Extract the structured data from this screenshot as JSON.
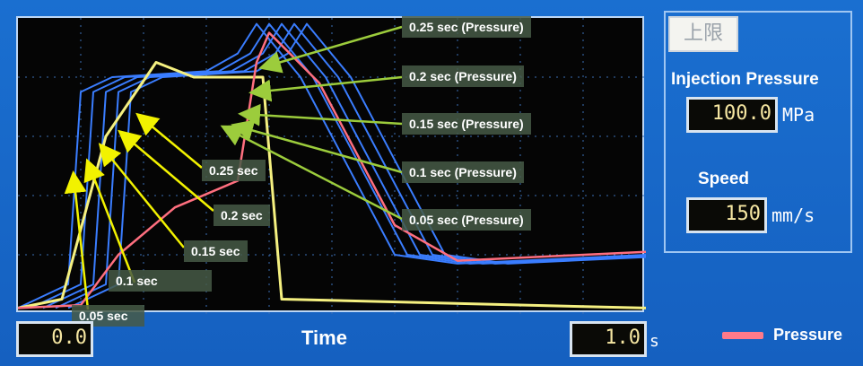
{
  "chart_data": {
    "type": "line",
    "xlabel": "Time",
    "xlim": [
      0.0,
      1.0
    ],
    "x_unit": "s",
    "grid": true,
    "series": [
      {
        "name": "Pressure",
        "color": "#ff6f7f"
      },
      {
        "color": "#3a7dff"
      },
      {
        "color": "#f5f080"
      }
    ],
    "series_pressure_points": [
      [
        0.0,
        0.02
      ],
      [
        0.1,
        0.03
      ],
      [
        0.16,
        0.2
      ],
      [
        0.25,
        0.36
      ],
      [
        0.35,
        0.45
      ],
      [
        0.38,
        0.85
      ],
      [
        0.4,
        0.95
      ],
      [
        0.48,
        0.78
      ],
      [
        0.6,
        0.3
      ],
      [
        0.7,
        0.18
      ],
      [
        1.0,
        0.21
      ]
    ],
    "series_speed_points": [
      [
        0.0,
        0.02
      ],
      [
        0.07,
        0.05
      ],
      [
        0.14,
        0.6
      ],
      [
        0.22,
        0.85
      ],
      [
        0.28,
        0.8
      ],
      [
        0.39,
        0.8
      ],
      [
        0.42,
        0.05
      ],
      [
        1.0,
        0.02
      ]
    ],
    "series_blue_points": [
      [
        0.0,
        0.02
      ],
      [
        0.08,
        0.1
      ],
      [
        0.1,
        0.75
      ],
      [
        0.15,
        0.8
      ],
      [
        0.3,
        0.82
      ],
      [
        0.35,
        0.88
      ],
      [
        0.38,
        0.98
      ],
      [
        0.45,
        0.8
      ],
      [
        0.6,
        0.2
      ],
      [
        0.7,
        0.17
      ],
      [
        1.0,
        0.2
      ]
    ]
  },
  "callouts": {
    "right": [
      "0.25 sec (Pressure)",
      "0.2 sec (Pressure)",
      "0.15 sec (Pressure)",
      "0.1 sec (Pressure)",
      "0.05 sec (Pressure)"
    ],
    "left": [
      "0.25 sec",
      "0.2 sec",
      "0.15 sec",
      "0.1 sec",
      "0.05 sec"
    ]
  },
  "panel": {
    "limit_badge": "上限",
    "injection_pressure_label": "Injection Pressure",
    "injection_pressure_value": "100.0",
    "injection_pressure_unit": "MPa",
    "speed_label": "Speed",
    "speed_value": "150",
    "speed_unit": "mm/s"
  },
  "footer": {
    "time_label": "Time",
    "start_value": "0.0",
    "end_value": "1.0",
    "end_unit": "s",
    "legend_label": "Pressure"
  },
  "colors": {
    "pressure": "#ff6f7f",
    "blue_traces": "#3a7dff",
    "yellow_trace": "#f5f080",
    "arrow_green": "#9ccc3c",
    "arrow_yellow": "#f2f200"
  }
}
